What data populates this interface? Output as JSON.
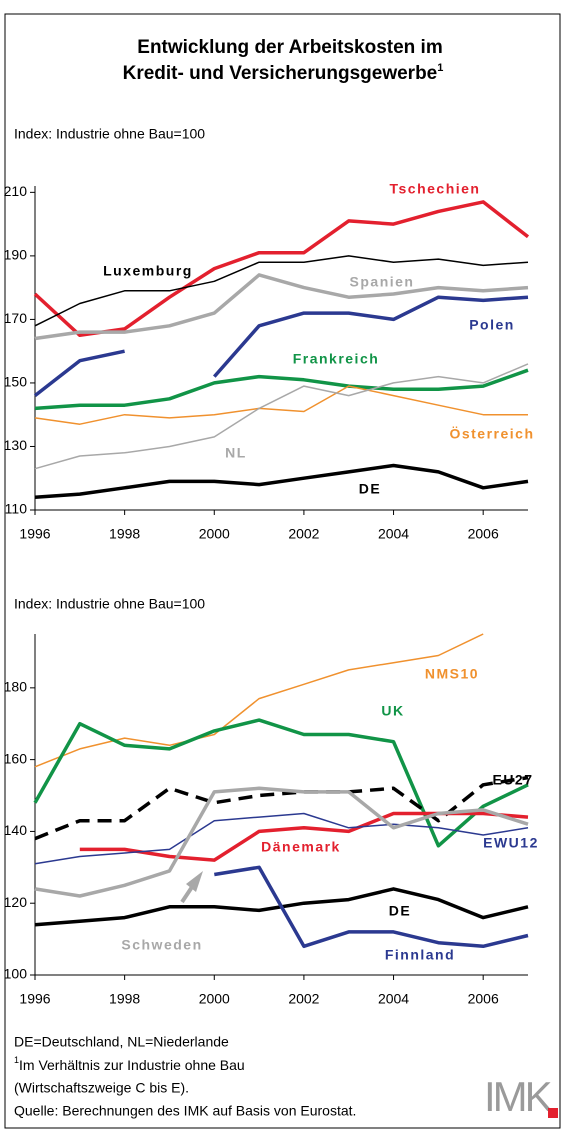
{
  "title": [
    "Entwicklung der Arbeitskosten im",
    "Kredit- und Versicherungsgewerbe"
  ],
  "title_marker": "1",
  "chart_data": [
    {
      "type": "line",
      "y_label": "Index: Industrie ohne Bau=100",
      "x": [
        1996,
        1997,
        1998,
        1999,
        2000,
        2001,
        2002,
        2003,
        2004,
        2005,
        2006,
        2007
      ],
      "xlim": [
        1996,
        2007
      ],
      "xticks": [
        1996,
        1998,
        2000,
        2002,
        2004,
        2006
      ],
      "ylim": [
        110,
        212
      ],
      "yticks": [
        110,
        130,
        150,
        170,
        190,
        210
      ],
      "series": [
        {
          "name": "Tschechien",
          "color": "#e3202e",
          "values": [
            178,
            165,
            167,
            177,
            186,
            191,
            191,
            201,
            200,
            204,
            207,
            196
          ]
        },
        {
          "name": "Luxemburg",
          "color": "#000000",
          "values": [
            168,
            175,
            179,
            179,
            182,
            188,
            188,
            190,
            188,
            189,
            187,
            188
          ]
        },
        {
          "name": "Spanien",
          "color": "#a8a8a8",
          "values": [
            164,
            166,
            166,
            168,
            172,
            184,
            180,
            177,
            178,
            180,
            179,
            180
          ]
        },
        {
          "name": "Polen",
          "color": "#2b3990",
          "values": [
            146,
            157,
            160,
            null,
            152,
            168,
            172,
            172,
            170,
            177,
            176,
            177
          ]
        },
        {
          "name": "Frankreich",
          "color": "#119447",
          "values": [
            142,
            143,
            143,
            145,
            150,
            152,
            151,
            149,
            148,
            148,
            149,
            154
          ]
        },
        {
          "name": "Österreich",
          "color": "#f0912e",
          "values": [
            139,
            137,
            140,
            139,
            140,
            142,
            141,
            149,
            146,
            143,
            140,
            140
          ]
        },
        {
          "name": "NL",
          "color": "#a8a8a8",
          "values": [
            123,
            127,
            128,
            130,
            133,
            142,
            149,
            146,
            150,
            152,
            150,
            156
          ]
        },
        {
          "name": "DE",
          "color": "#000000",
          "values": [
            114,
            115,
            117,
            119,
            119,
            118,
            120,
            122,
            124,
            122,
            117,
            119
          ]
        }
      ]
    },
    {
      "type": "line",
      "y_label": "Index: Industrie ohne Bau=100",
      "x": [
        1996,
        1997,
        1998,
        1999,
        2000,
        2001,
        2002,
        2003,
        2004,
        2005,
        2006,
        2007
      ],
      "xlim": [
        1996,
        2007
      ],
      "xticks": [
        1996,
        1998,
        2000,
        2002,
        2004,
        2006
      ],
      "ylim": [
        100,
        195
      ],
      "yticks": [
        100,
        120,
        140,
        160,
        180
      ],
      "series": [
        {
          "name": "NMS10",
          "color": "#f0912e",
          "values": [
            158,
            163,
            166,
            164,
            167,
            177,
            181,
            185,
            187,
            189,
            195,
            null
          ]
        },
        {
          "name": "UK",
          "color": "#119447",
          "values": [
            148,
            170,
            164,
            163,
            168,
            171,
            167,
            167,
            165,
            136,
            147,
            153
          ]
        },
        {
          "name": "EU27",
          "color": "#000000",
          "values": [
            138,
            143,
            143,
            152,
            148,
            150,
            151,
            151,
            152,
            143,
            153,
            155
          ]
        },
        {
          "name": "Dänemark",
          "color": "#e3202e",
          "values": [
            null,
            135,
            135,
            133,
            132,
            140,
            141,
            140,
            145,
            145,
            145,
            144
          ]
        },
        {
          "name": "EWU12",
          "color": "#2b3990",
          "values": [
            131,
            133,
            134,
            135,
            143,
            144,
            145,
            141,
            142,
            141,
            139,
            141
          ]
        },
        {
          "name": "Schweden",
          "color": "#a8a8a8",
          "values": [
            124,
            122,
            125,
            129,
            151,
            152,
            151,
            151,
            141,
            145,
            146,
            142
          ]
        },
        {
          "name": "DE",
          "color": "#000000",
          "values": [
            114,
            115,
            116,
            119,
            119,
            118,
            120,
            121,
            124,
            121,
            116,
            119
          ]
        },
        {
          "name": "Finnland",
          "color": "#2b3990",
          "values": [
            null,
            null,
            null,
            null,
            128,
            130,
            108,
            112,
            112,
            109,
            108,
            111
          ]
        }
      ]
    }
  ],
  "footnotes": {
    "abbrev": "DE=Deutschland, NL=Niederlande",
    "marker": "1",
    "lines": [
      "Im Verhältnis zur Industrie ohne Bau",
      "(Wirtschaftszweige C bis E)."
    ],
    "source": "Quelle: Berechnungen des IMK auf Basis von Eurostat."
  },
  "logo": "IMK"
}
